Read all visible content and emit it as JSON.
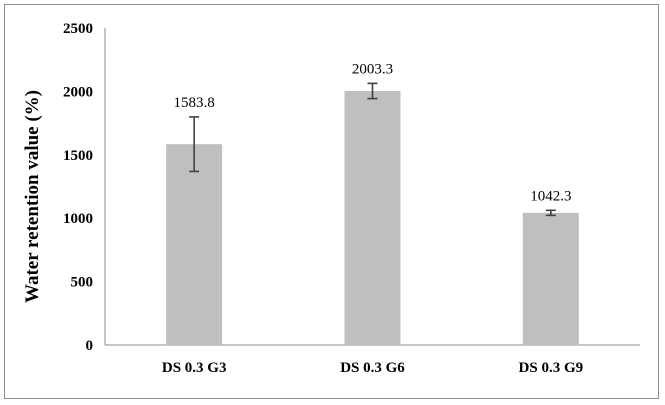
{
  "chart_data": {
    "type": "bar",
    "title": "",
    "xlabel": "",
    "ylabel": "Water retention value (%)",
    "categories": [
      "DS 0.3 G3",
      "DS 0.3 G6",
      "DS 0.3 G9"
    ],
    "values": [
      1583.8,
      2003.3,
      1042.3
    ],
    "error": [
      215,
      60,
      20
    ],
    "data_labels": [
      "1583.8",
      "2003.3",
      "1042.3"
    ],
    "ylim": [
      0,
      2500
    ],
    "yticks": [
      0,
      500,
      1000,
      1500,
      2000,
      2500
    ],
    "ytick_labels": [
      "0",
      "500",
      "1000",
      "1500",
      "2000",
      "2500"
    ],
    "grid": false,
    "legend": "none",
    "colors": {
      "bar": "#bfbfbf",
      "error_bar": "#404040",
      "axis": "#8c8c8c"
    }
  }
}
